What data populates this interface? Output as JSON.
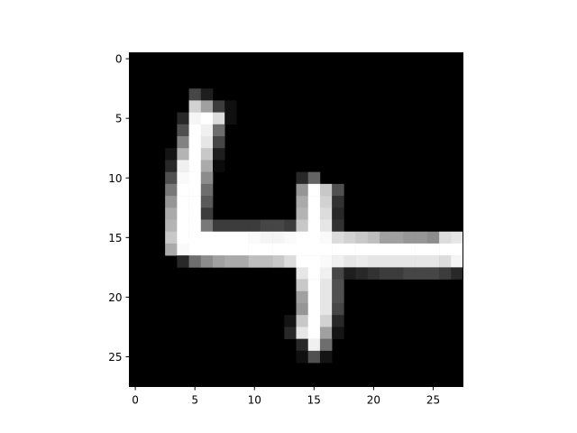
{
  "chart_data": {
    "type": "heatmap",
    "title": "",
    "xlabel": "",
    "ylabel": "",
    "colormap": "gray",
    "value_range": [
      0,
      255
    ],
    "rows": 28,
    "cols": 28,
    "xlim": [
      -0.5,
      27.5
    ],
    "ylim": [
      27.5,
      -0.5
    ],
    "x_ticks": [
      0,
      5,
      10,
      15,
      20,
      25
    ],
    "y_ticks": [
      0,
      5,
      10,
      15,
      20,
      25
    ],
    "x_tick_labels": [
      "0",
      "5",
      "10",
      "15",
      "20",
      "25"
    ],
    "y_tick_labels": [
      "0",
      "5",
      "10",
      "15",
      "20",
      "25"
    ],
    "pixels": [
      {
        "r": 3,
        "c": 5,
        "v": 70
      },
      {
        "r": 3,
        "c": 6,
        "v": 30
      },
      {
        "r": 4,
        "c": 5,
        "v": 210
      },
      {
        "r": 4,
        "c": 6,
        "v": 160
      },
      {
        "r": 4,
        "c": 7,
        "v": 60
      },
      {
        "r": 4,
        "c": 8,
        "v": 15
      },
      {
        "r": 5,
        "c": 4,
        "v": 40
      },
      {
        "r": 5,
        "c": 5,
        "v": 245
      },
      {
        "r": 5,
        "c": 6,
        "v": 255
      },
      {
        "r": 5,
        "c": 7,
        "v": 220
      },
      {
        "r": 5,
        "c": 8,
        "v": 15
      },
      {
        "r": 6,
        "c": 4,
        "v": 80
      },
      {
        "r": 6,
        "c": 5,
        "v": 255
      },
      {
        "r": 6,
        "c": 6,
        "v": 240
      },
      {
        "r": 6,
        "c": 7,
        "v": 110
      },
      {
        "r": 7,
        "c": 4,
        "v": 130
      },
      {
        "r": 7,
        "c": 5,
        "v": 255
      },
      {
        "r": 7,
        "c": 6,
        "v": 230
      },
      {
        "r": 7,
        "c": 7,
        "v": 70
      },
      {
        "r": 8,
        "c": 3,
        "v": 20
      },
      {
        "r": 8,
        "c": 4,
        "v": 180
      },
      {
        "r": 8,
        "c": 5,
        "v": 255
      },
      {
        "r": 8,
        "c": 6,
        "v": 200
      },
      {
        "r": 8,
        "c": 7,
        "v": 30
      },
      {
        "r": 9,
        "c": 3,
        "v": 40
      },
      {
        "r": 9,
        "c": 4,
        "v": 240
      },
      {
        "r": 9,
        "c": 5,
        "v": 255
      },
      {
        "r": 9,
        "c": 6,
        "v": 170
      },
      {
        "r": 9,
        "c": 7,
        "v": 10
      },
      {
        "r": 10,
        "c": 3,
        "v": 80
      },
      {
        "r": 10,
        "c": 4,
        "v": 250
      },
      {
        "r": 10,
        "c": 5,
        "v": 255
      },
      {
        "r": 10,
        "c": 6,
        "v": 140
      },
      {
        "r": 10,
        "c": 14,
        "v": 40
      },
      {
        "r": 10,
        "c": 15,
        "v": 100
      },
      {
        "r": 11,
        "c": 3,
        "v": 120
      },
      {
        "r": 11,
        "c": 4,
        "v": 255
      },
      {
        "r": 11,
        "c": 5,
        "v": 255
      },
      {
        "r": 11,
        "c": 6,
        "v": 110
      },
      {
        "r": 11,
        "c": 14,
        "v": 150
      },
      {
        "r": 11,
        "c": 15,
        "v": 255
      },
      {
        "r": 11,
        "c": 16,
        "v": 200
      },
      {
        "r": 11,
        "c": 17,
        "v": 80
      },
      {
        "r": 12,
        "c": 3,
        "v": 150
      },
      {
        "r": 12,
        "c": 4,
        "v": 255
      },
      {
        "r": 12,
        "c": 5,
        "v": 255
      },
      {
        "r": 12,
        "c": 6,
        "v": 90
      },
      {
        "r": 12,
        "c": 14,
        "v": 170
      },
      {
        "r": 12,
        "c": 15,
        "v": 255
      },
      {
        "r": 12,
        "c": 16,
        "v": 210
      },
      {
        "r": 12,
        "c": 17,
        "v": 50
      },
      {
        "r": 13,
        "c": 3,
        "v": 170
      },
      {
        "r": 13,
        "c": 4,
        "v": 255
      },
      {
        "r": 13,
        "c": 5,
        "v": 255
      },
      {
        "r": 13,
        "c": 6,
        "v": 60
      },
      {
        "r": 13,
        "c": 14,
        "v": 180
      },
      {
        "r": 13,
        "c": 15,
        "v": 255
      },
      {
        "r": 13,
        "c": 16,
        "v": 220
      },
      {
        "r": 13,
        "c": 17,
        "v": 40
      },
      {
        "r": 14,
        "c": 3,
        "v": 180
      },
      {
        "r": 14,
        "c": 4,
        "v": 255
      },
      {
        "r": 14,
        "c": 5,
        "v": 255
      },
      {
        "r": 14,
        "c": 6,
        "v": 120
      },
      {
        "r": 14,
        "c": 7,
        "v": 60
      },
      {
        "r": 14,
        "c": 8,
        "v": 60
      },
      {
        "r": 14,
        "c": 9,
        "v": 60
      },
      {
        "r": 14,
        "c": 10,
        "v": 60
      },
      {
        "r": 14,
        "c": 11,
        "v": 70
      },
      {
        "r": 14,
        "c": 12,
        "v": 70
      },
      {
        "r": 14,
        "c": 13,
        "v": 60
      },
      {
        "r": 14,
        "c": 14,
        "v": 200
      },
      {
        "r": 14,
        "c": 15,
        "v": 255
      },
      {
        "r": 14,
        "c": 16,
        "v": 230
      },
      {
        "r": 14,
        "c": 17,
        "v": 50
      },
      {
        "r": 15,
        "c": 3,
        "v": 200
      },
      {
        "r": 15,
        "c": 4,
        "v": 255
      },
      {
        "r": 15,
        "c": 5,
        "v": 255
      },
      {
        "r": 15,
        "c": 6,
        "v": 255
      },
      {
        "r": 15,
        "c": 7,
        "v": 255
      },
      {
        "r": 15,
        "c": 8,
        "v": 255
      },
      {
        "r": 15,
        "c": 9,
        "v": 255
      },
      {
        "r": 15,
        "c": 10,
        "v": 250
      },
      {
        "r": 15,
        "c": 11,
        "v": 245
      },
      {
        "r": 15,
        "c": 12,
        "v": 245
      },
      {
        "r": 15,
        "c": 13,
        "v": 250
      },
      {
        "r": 15,
        "c": 14,
        "v": 255
      },
      {
        "r": 15,
        "c": 15,
        "v": 255
      },
      {
        "r": 15,
        "c": 16,
        "v": 250
      },
      {
        "r": 15,
        "c": 17,
        "v": 220
      },
      {
        "r": 15,
        "c": 18,
        "v": 210
      },
      {
        "r": 15,
        "c": 19,
        "v": 200
      },
      {
        "r": 15,
        "c": 20,
        "v": 190
      },
      {
        "r": 15,
        "c": 21,
        "v": 160
      },
      {
        "r": 15,
        "c": 22,
        "v": 160
      },
      {
        "r": 15,
        "c": 23,
        "v": 150
      },
      {
        "r": 15,
        "c": 24,
        "v": 150
      },
      {
        "r": 15,
        "c": 25,
        "v": 140
      },
      {
        "r": 15,
        "c": 26,
        "v": 220
      },
      {
        "r": 15,
        "c": 27,
        "v": 230
      },
      {
        "r": 16,
        "c": 3,
        "v": 170
      },
      {
        "r": 16,
        "c": 4,
        "v": 250
      },
      {
        "r": 16,
        "c": 5,
        "v": 255
      },
      {
        "r": 16,
        "c": 6,
        "v": 255
      },
      {
        "r": 16,
        "c": 7,
        "v": 255
      },
      {
        "r": 16,
        "c": 8,
        "v": 255
      },
      {
        "r": 16,
        "c": 9,
        "v": 255
      },
      {
        "r": 16,
        "c": 10,
        "v": 255
      },
      {
        "r": 16,
        "c": 11,
        "v": 255
      },
      {
        "r": 16,
        "c": 12,
        "v": 255
      },
      {
        "r": 16,
        "c": 13,
        "v": 255
      },
      {
        "r": 16,
        "c": 14,
        "v": 255
      },
      {
        "r": 16,
        "c": 15,
        "v": 255
      },
      {
        "r": 16,
        "c": 16,
        "v": 255
      },
      {
        "r": 16,
        "c": 17,
        "v": 255
      },
      {
        "r": 16,
        "c": 18,
        "v": 255
      },
      {
        "r": 16,
        "c": 19,
        "v": 255
      },
      {
        "r": 16,
        "c": 20,
        "v": 255
      },
      {
        "r": 16,
        "c": 21,
        "v": 255
      },
      {
        "r": 16,
        "c": 22,
        "v": 255
      },
      {
        "r": 16,
        "c": 23,
        "v": 255
      },
      {
        "r": 16,
        "c": 24,
        "v": 255
      },
      {
        "r": 16,
        "c": 25,
        "v": 255
      },
      {
        "r": 16,
        "c": 26,
        "v": 255
      },
      {
        "r": 16,
        "c": 27,
        "v": 255
      },
      {
        "r": 17,
        "c": 4,
        "v": 40
      },
      {
        "r": 17,
        "c": 5,
        "v": 110
      },
      {
        "r": 17,
        "c": 6,
        "v": 140
      },
      {
        "r": 17,
        "c": 7,
        "v": 160
      },
      {
        "r": 17,
        "c": 8,
        "v": 170
      },
      {
        "r": 17,
        "c": 9,
        "v": 170
      },
      {
        "r": 17,
        "c": 10,
        "v": 190
      },
      {
        "r": 17,
        "c": 11,
        "v": 190
      },
      {
        "r": 17,
        "c": 12,
        "v": 200
      },
      {
        "r": 17,
        "c": 13,
        "v": 220
      },
      {
        "r": 17,
        "c": 14,
        "v": 255
      },
      {
        "r": 17,
        "c": 15,
        "v": 255
      },
      {
        "r": 17,
        "c": 16,
        "v": 250
      },
      {
        "r": 17,
        "c": 17,
        "v": 240
      },
      {
        "r": 17,
        "c": 18,
        "v": 230
      },
      {
        "r": 17,
        "c": 19,
        "v": 235
      },
      {
        "r": 17,
        "c": 20,
        "v": 230
      },
      {
        "r": 17,
        "c": 21,
        "v": 230
      },
      {
        "r": 17,
        "c": 22,
        "v": 230
      },
      {
        "r": 17,
        "c": 23,
        "v": 230
      },
      {
        "r": 17,
        "c": 24,
        "v": 230
      },
      {
        "r": 17,
        "c": 25,
        "v": 230
      },
      {
        "r": 17,
        "c": 26,
        "v": 220
      },
      {
        "r": 17,
        "c": 27,
        "v": 245
      },
      {
        "r": 18,
        "c": 14,
        "v": 230
      },
      {
        "r": 18,
        "c": 15,
        "v": 255
      },
      {
        "r": 18,
        "c": 16,
        "v": 240
      },
      {
        "r": 18,
        "c": 17,
        "v": 70
      },
      {
        "r": 18,
        "c": 18,
        "v": 30
      },
      {
        "r": 18,
        "c": 19,
        "v": 40
      },
      {
        "r": 18,
        "c": 20,
        "v": 50
      },
      {
        "r": 18,
        "c": 21,
        "v": 60
      },
      {
        "r": 18,
        "c": 22,
        "v": 60
      },
      {
        "r": 18,
        "c": 23,
        "v": 70
      },
      {
        "r": 18,
        "c": 24,
        "v": 70
      },
      {
        "r": 18,
        "c": 25,
        "v": 70
      },
      {
        "r": 18,
        "c": 26,
        "v": 60
      },
      {
        "r": 18,
        "c": 27,
        "v": 40
      },
      {
        "r": 19,
        "c": 14,
        "v": 200
      },
      {
        "r": 19,
        "c": 15,
        "v": 255
      },
      {
        "r": 19,
        "c": 16,
        "v": 230
      },
      {
        "r": 19,
        "c": 17,
        "v": 80
      },
      {
        "r": 20,
        "c": 14,
        "v": 160
      },
      {
        "r": 20,
        "c": 15,
        "v": 255
      },
      {
        "r": 20,
        "c": 16,
        "v": 230
      },
      {
        "r": 20,
        "c": 17,
        "v": 80
      },
      {
        "r": 21,
        "c": 14,
        "v": 150
      },
      {
        "r": 21,
        "c": 15,
        "v": 255
      },
      {
        "r": 21,
        "c": 16,
        "v": 230
      },
      {
        "r": 21,
        "c": 17,
        "v": 70
      },
      {
        "r": 22,
        "c": 13,
        "v": 20
      },
      {
        "r": 22,
        "c": 14,
        "v": 200
      },
      {
        "r": 22,
        "c": 15,
        "v": 255
      },
      {
        "r": 22,
        "c": 16,
        "v": 210
      },
      {
        "r": 22,
        "c": 17,
        "v": 40
      },
      {
        "r": 23,
        "c": 13,
        "v": 40
      },
      {
        "r": 23,
        "c": 14,
        "v": 230
      },
      {
        "r": 23,
        "c": 15,
        "v": 255
      },
      {
        "r": 23,
        "c": 16,
        "v": 160
      },
      {
        "r": 23,
        "c": 17,
        "v": 20
      },
      {
        "r": 24,
        "c": 14,
        "v": 40
      },
      {
        "r": 24,
        "c": 15,
        "v": 240
      },
      {
        "r": 24,
        "c": 16,
        "v": 110
      },
      {
        "r": 25,
        "c": 14,
        "v": 15
      },
      {
        "r": 25,
        "c": 15,
        "v": 80
      },
      {
        "r": 25,
        "c": 16,
        "v": 20
      }
    ]
  }
}
